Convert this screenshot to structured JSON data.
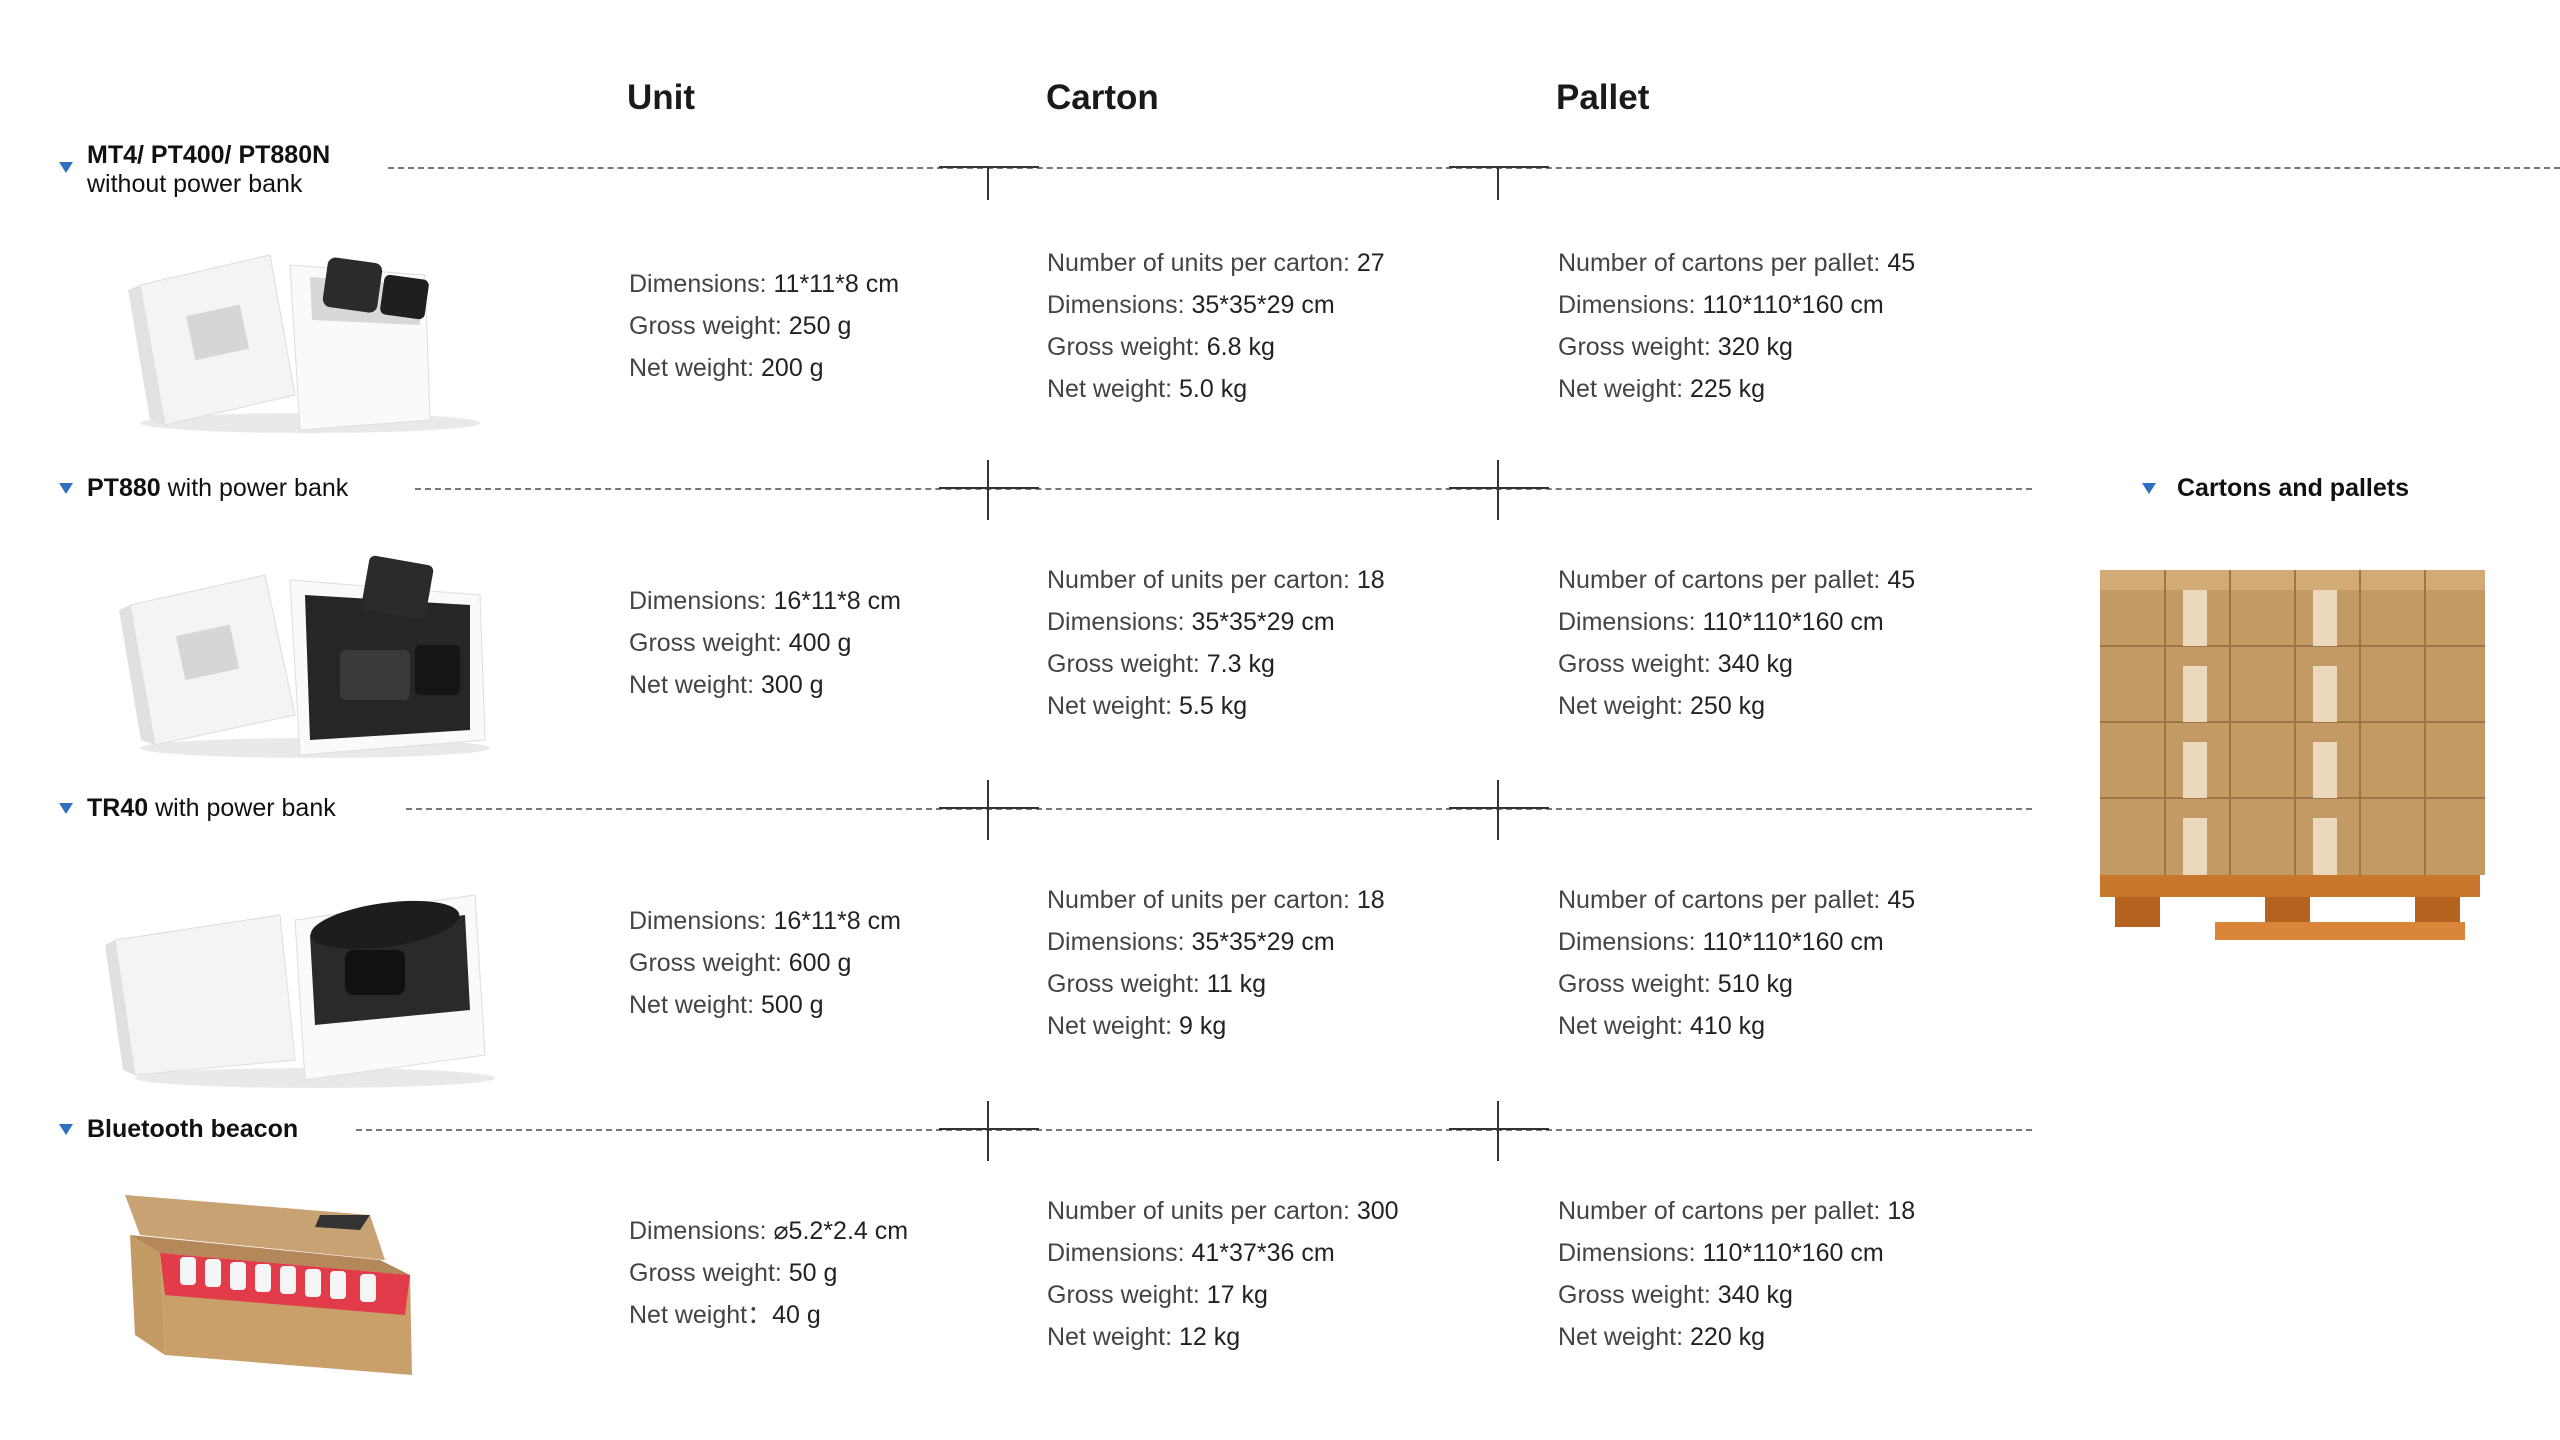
{
  "headers": {
    "unit": "Unit",
    "carton": "Carton",
    "pallet": "Pallet"
  },
  "side": {
    "title": "Cartons and pallets"
  },
  "labels": {
    "dimensions": "Dimensions: ",
    "gross": "Gross weight: ",
    "net": "Net weight: ",
    "net_alt": "Net weight：",
    "units_per_carton": "Number of units per carton: ",
    "cartons_per_pallet": "Number of cartons per pallet: "
  },
  "sections": [
    {
      "title": "MT4/ PT400/ PT880N",
      "subtitle": "without power bank",
      "unit": {
        "dimensions": "11*11*8 cm",
        "gross": "250 g",
        "net": "200 g"
      },
      "carton": {
        "units": "27",
        "dimensions": "35*35*29 cm",
        "gross": "6.8 kg",
        "net": "5.0 kg"
      },
      "pallet": {
        "cartons": "45",
        "dimensions": "110*110*160 cm",
        "gross": "320 kg",
        "net": "225 kg"
      }
    },
    {
      "title": "PT880",
      "title_suffix": " with power bank",
      "unit": {
        "dimensions": "16*11*8 cm",
        "gross": "400 g",
        "net": "300 g"
      },
      "carton": {
        "units": "18",
        "dimensions": "35*35*29 cm",
        "gross": "7.3 kg",
        "net": "5.5 kg"
      },
      "pallet": {
        "cartons": "45",
        "dimensions": "110*110*160 cm",
        "gross": "340 kg",
        "net": "250 kg"
      }
    },
    {
      "title": "TR40",
      "title_suffix": " with power bank",
      "unit": {
        "dimensions": "16*11*8 cm",
        "gross": "600 g",
        "net": "500 g"
      },
      "carton": {
        "units": "18",
        "dimensions": "35*35*29 cm",
        "gross": "11 kg",
        "net": "9 kg"
      },
      "pallet": {
        "cartons": "45",
        "dimensions": "110*110*160 cm",
        "gross": "510 kg",
        "net": "410 kg"
      }
    },
    {
      "title": "Bluetooth beacon",
      "unit": {
        "dimensions": "⌀5.2*2.4 cm",
        "gross": "50 g",
        "net": "40 g"
      },
      "carton": {
        "units": "300",
        "dimensions": "41*37*36 cm",
        "gross": "17 kg",
        "net": "12 kg"
      },
      "pallet": {
        "cartons": "18",
        "dimensions": "110*110*160 cm",
        "gross": "340 kg",
        "net": "220 kg"
      }
    }
  ],
  "icons": {
    "bullet": "triangle-down-icon"
  },
  "colors": {
    "accent": "#2e6fc1",
    "carton": "#c49a64",
    "pallet_wood": "#c8762c"
  }
}
